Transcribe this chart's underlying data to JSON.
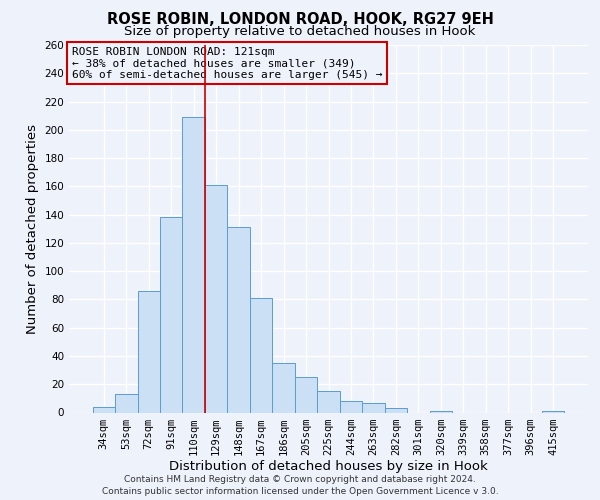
{
  "title": "ROSE ROBIN, LONDON ROAD, HOOK, RG27 9EH",
  "subtitle": "Size of property relative to detached houses in Hook",
  "xlabel": "Distribution of detached houses by size in Hook",
  "ylabel": "Number of detached properties",
  "bar_labels": [
    "34sqm",
    "53sqm",
    "72sqm",
    "91sqm",
    "110sqm",
    "129sqm",
    "148sqm",
    "167sqm",
    "186sqm",
    "205sqm",
    "225sqm",
    "244sqm",
    "263sqm",
    "282sqm",
    "301sqm",
    "320sqm",
    "339sqm",
    "358sqm",
    "377sqm",
    "396sqm",
    "415sqm"
  ],
  "bar_values": [
    4,
    13,
    86,
    138,
    209,
    161,
    131,
    81,
    35,
    25,
    15,
    8,
    7,
    3,
    0,
    1,
    0,
    0,
    0,
    0,
    1
  ],
  "bar_color": "#cce0f5",
  "bar_edge_color": "#5b9bd5",
  "ylim": [
    0,
    260
  ],
  "yticks": [
    0,
    20,
    40,
    60,
    80,
    100,
    120,
    140,
    160,
    180,
    200,
    220,
    240,
    260
  ],
  "vline_x_index": 4.5,
  "vline_color": "#cc0000",
  "annotation_title": "ROSE ROBIN LONDON ROAD: 121sqm",
  "annotation_line1": "← 38% of detached houses are smaller (349)",
  "annotation_line2": "60% of semi-detached houses are larger (545) →",
  "annotation_box_edge_color": "#cc0000",
  "footer1": "Contains HM Land Registry data © Crown copyright and database right 2024.",
  "footer2": "Contains public sector information licensed under the Open Government Licence v 3.0.",
  "background_color": "#eef2fb",
  "grid_color": "#ffffff",
  "title_fontsize": 10.5,
  "subtitle_fontsize": 9.5,
  "axis_label_fontsize": 9.5,
  "tick_fontsize": 7.5,
  "annotation_fontsize": 8,
  "footer_fontsize": 6.5
}
